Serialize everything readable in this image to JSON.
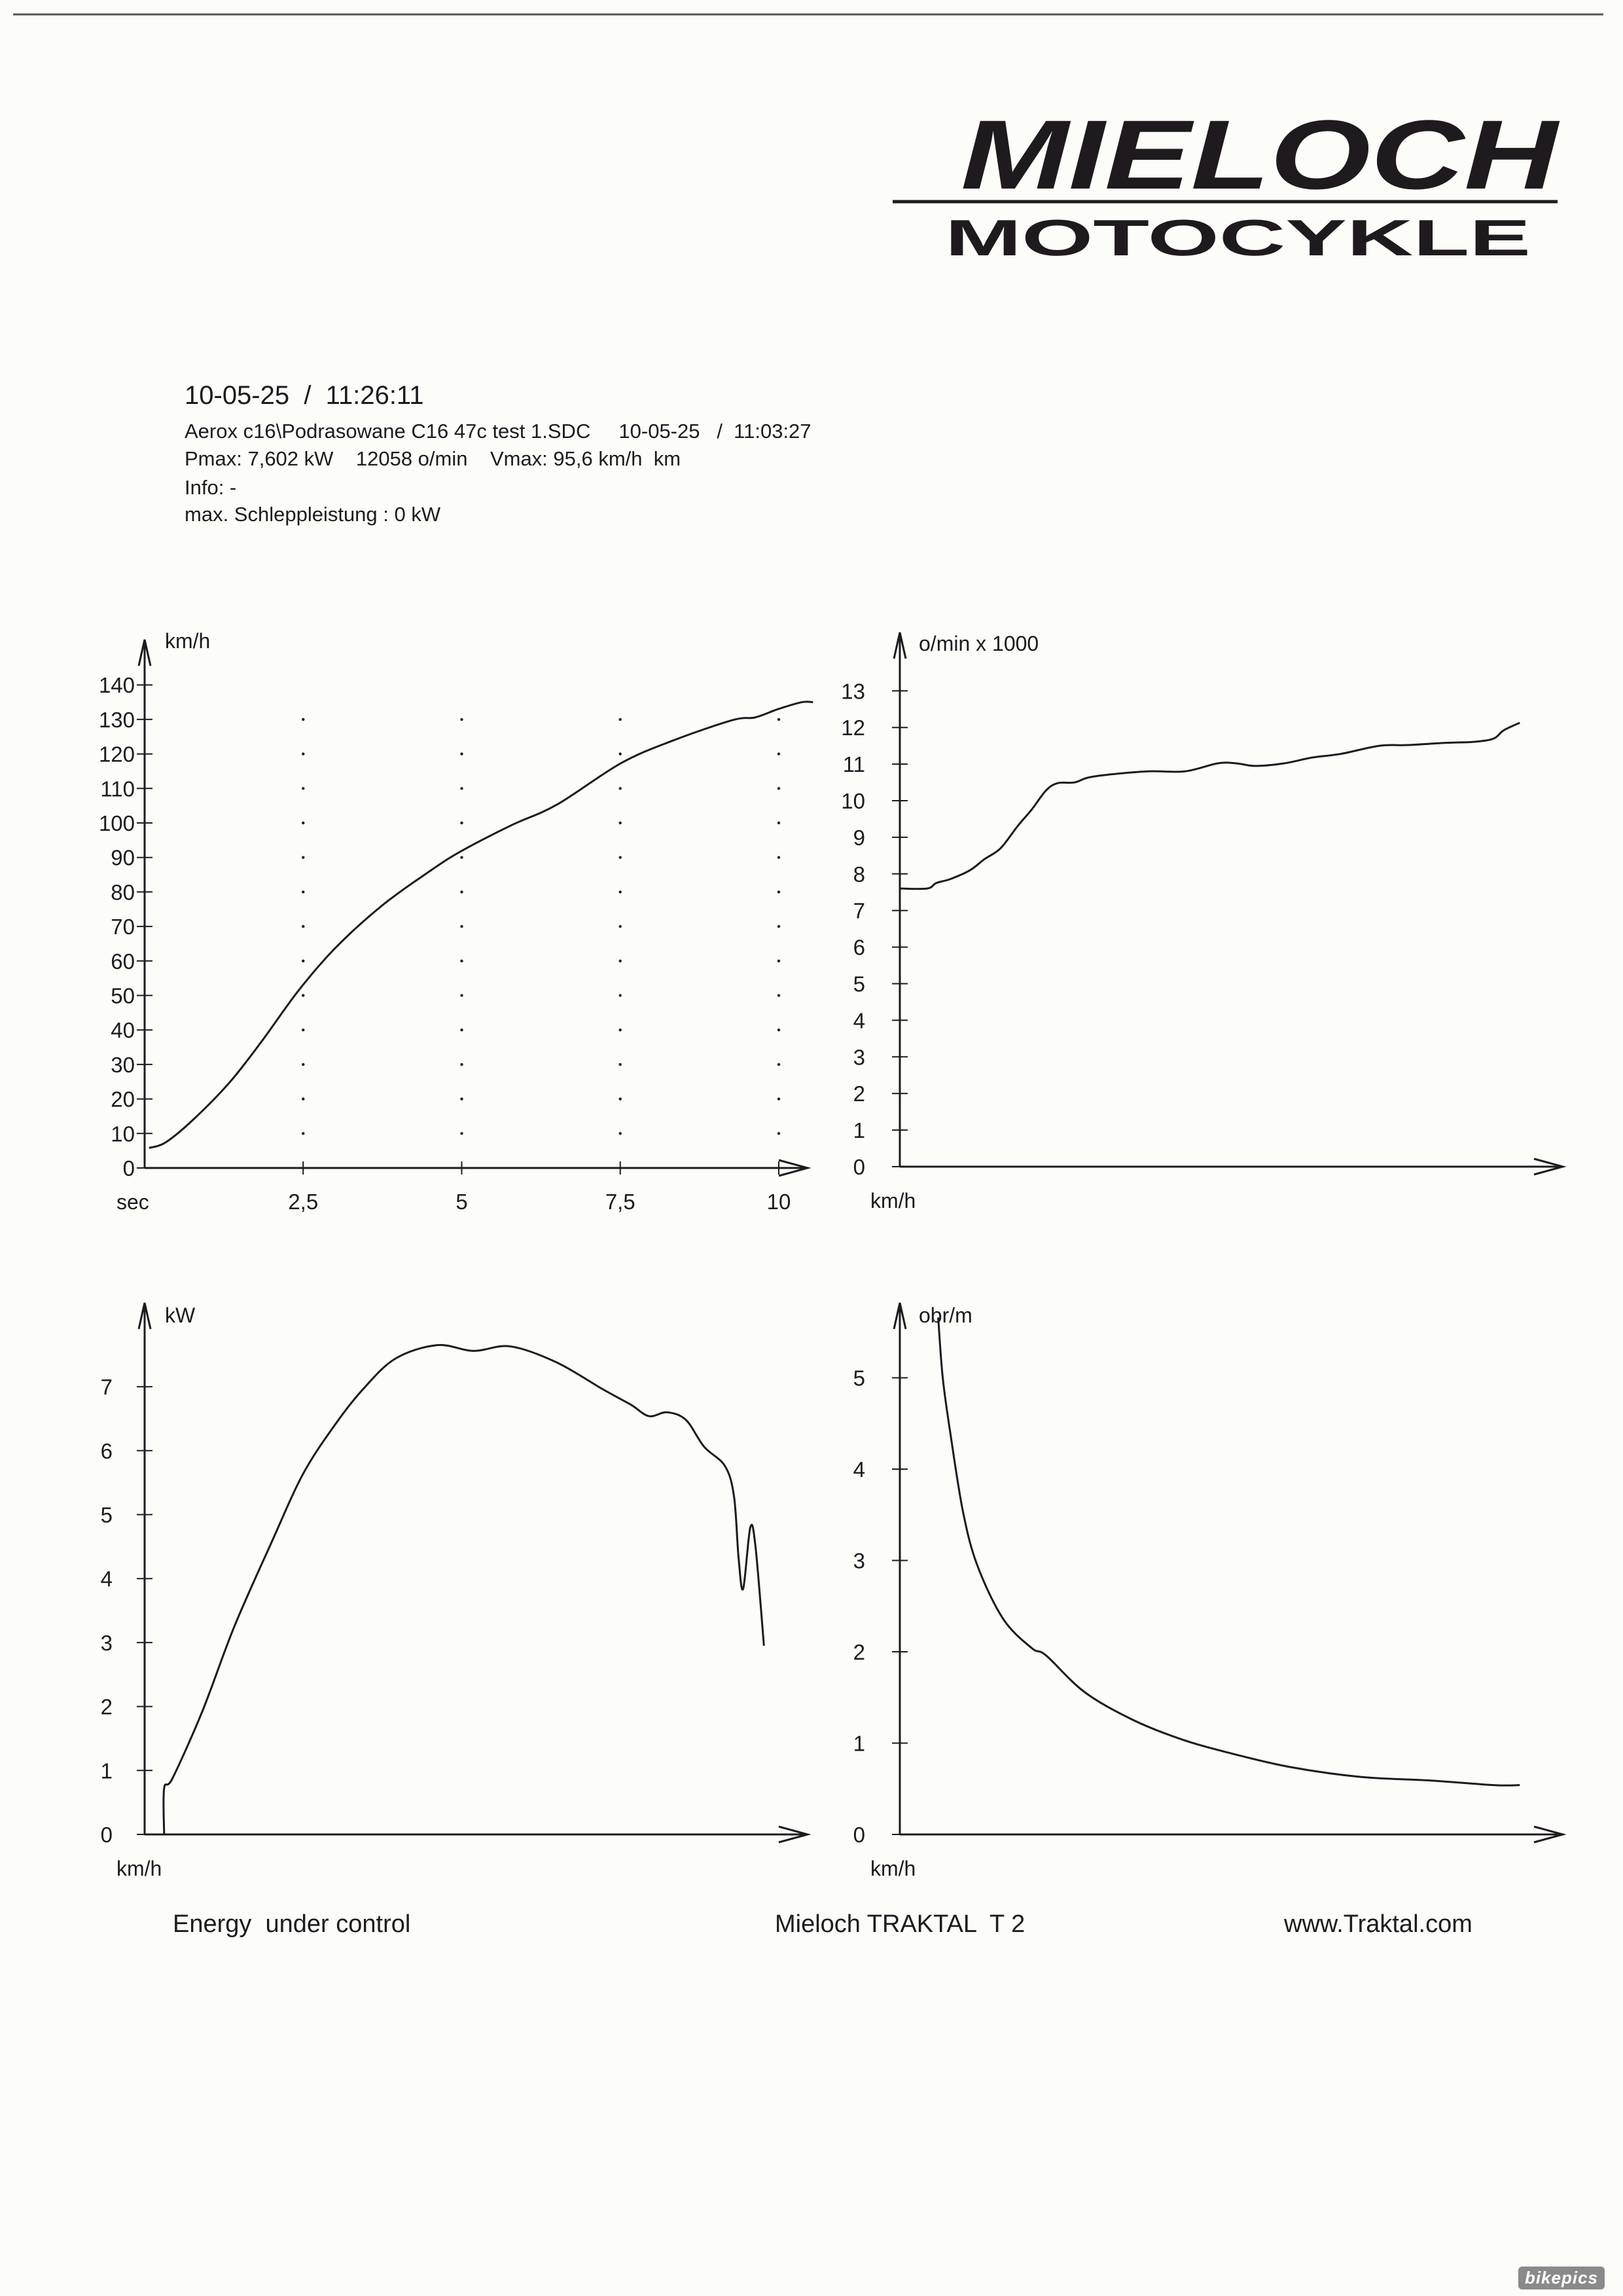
{
  "logo": {
    "brand": "MIELOCH",
    "subtitle": "MOTOCYKLE"
  },
  "header": {
    "print_datetime": "10-05-25  /  11:26:11",
    "file_line": "Aerox c16\\Podrasowane C16 47c test 1.SDC     10-05-25   /  11:03:27",
    "max_line": "Pmax: 7,602 kW    12058 o/min    Vmax: 95,6 km/h  km",
    "info": "Info: -",
    "schlepp": "max. Schleppleistung : 0 kW"
  },
  "footer": {
    "left": "Energy  under control",
    "center": "Mieloch TRAKTAL  T 2",
    "right": "www.Traktal.com"
  },
  "watermark": "bikepics",
  "chart_data": [
    {
      "id": "speed-time",
      "type": "line",
      "title": "",
      "ylabel": "km/h",
      "xlabel": "sec",
      "ylim": [
        0,
        140
      ],
      "xlim": [
        0,
        10.5
      ],
      "yticks": [
        0,
        10,
        20,
        30,
        40,
        50,
        60,
        70,
        80,
        90,
        100,
        110,
        120,
        130,
        140
      ],
      "ytick_labels": [
        "0",
        "10",
        "20",
        "30",
        "40",
        "50",
        "60",
        "70",
        "80",
        "90",
        "100",
        "110",
        "120",
        "130",
        "140"
      ],
      "xticks": [
        2.5,
        5,
        7.5,
        10
      ],
      "xtick_labels": [
        "2,5",
        "5",
        "7,5",
        "10"
      ],
      "grid": "dotted",
      "x": [
        0.07,
        0.33,
        0.76,
        1.34,
        1.85,
        2.43,
        3.02,
        3.74,
        4.47,
        4.98,
        5.78,
        6.5,
        7.51,
        8.32,
        9.27,
        9.63,
        9.99,
        10.36,
        10.54
      ],
      "y": [
        5.8,
        7.4,
        13.9,
        24.8,
        36.8,
        51.5,
        64,
        76,
        85.7,
        91.7,
        99.3,
        105.3,
        117.3,
        123.8,
        129.8,
        130.6,
        133,
        135,
        135
      ]
    },
    {
      "id": "rpm-speed",
      "type": "line",
      "ylabel": "o/min x 1000",
      "xlabel": "km/h",
      "ylim": [
        0,
        13
      ],
      "xlim": [
        0,
        102
      ],
      "yticks": [
        0,
        1,
        2,
        3,
        4,
        5,
        6,
        7,
        8,
        9,
        10,
        11,
        12,
        13
      ],
      "ytick_labels": [
        "0",
        "1",
        "2",
        "3",
        "4",
        "5",
        "6",
        "7",
        "8",
        "9",
        "10",
        "11",
        "12",
        "13"
      ],
      "grid": "none",
      "x": [
        0,
        4.2,
        5.6,
        7.8,
        10.8,
        13,
        15.5,
        18.1,
        20.3,
        22.5,
        24.3,
        26.9,
        29.8,
        37.9,
        43.8,
        48.9,
        51.8,
        54.7,
        59.1,
        63.5,
        67.9,
        73.8,
        78.2,
        84,
        88.5,
        91.4,
        92.9,
        95.4
      ],
      "y": [
        7.6,
        7.6,
        7.75,
        7.86,
        8.1,
        8.4,
        8.7,
        9.3,
        9.76,
        10.28,
        10.48,
        10.5,
        10.66,
        10.8,
        10.8,
        11.02,
        11.02,
        10.95,
        11.02,
        11.18,
        11.28,
        11.5,
        11.52,
        11.58,
        11.61,
        11.7,
        11.92,
        12.13
      ]
    },
    {
      "id": "power-speed",
      "type": "line",
      "ylabel": "kW",
      "xlabel": "km/h",
      "ylim": [
        0,
        7.7
      ],
      "xlim": [
        0,
        102
      ],
      "yticks": [
        0,
        1,
        2,
        3,
        4,
        5,
        6,
        7
      ],
      "ytick_labels": [
        "0",
        "1",
        "2",
        "3",
        "4",
        "5",
        "6",
        "7"
      ],
      "grid": "none",
      "x": [
        3.0,
        3.0,
        4.3,
        8.9,
        13.8,
        19.5,
        24.4,
        29.4,
        33.6,
        38.6,
        45,
        50.6,
        56.3,
        63.4,
        70.5,
        74.8,
        77.6,
        80.4,
        83.3,
        86.1,
        89.3,
        90.7,
        91.4,
        92.1,
        93.2,
        94,
        95.3
      ],
      "y": [
        0,
        0.72,
        0.88,
        1.93,
        3.25,
        4.56,
        5.64,
        6.42,
        6.96,
        7.44,
        7.65,
        7.56,
        7.63,
        7.38,
        6.96,
        6.72,
        6.54,
        6.6,
        6.48,
        6.06,
        5.76,
        5.28,
        4.32,
        3.84,
        4.8,
        4.5,
        2.95
      ]
    },
    {
      "id": "ratio-speed",
      "type": "line",
      "ylabel": "obr/m",
      "xlabel": "km/h",
      "ylim": [
        0,
        5.7
      ],
      "xlim": [
        0,
        102
      ],
      "yticks": [
        0,
        1,
        2,
        3,
        4,
        5
      ],
      "ytick_labels": [
        "0",
        "1",
        "2",
        "3",
        "4",
        "5"
      ],
      "grid": "none",
      "x": [
        5.9,
        6.6,
        7.8,
        9.7,
        11.9,
        15.9,
        20.3,
        22.5,
        28.4,
        35.7,
        43,
        50.3,
        59.9,
        70.9,
        81.8,
        91.4,
        95.4
      ],
      "y": [
        5.66,
        5.0,
        4.38,
        3.54,
        2.95,
        2.36,
        2.04,
        1.96,
        1.56,
        1.26,
        1.05,
        0.9,
        0.74,
        0.63,
        0.59,
        0.54,
        0.54
      ]
    }
  ]
}
